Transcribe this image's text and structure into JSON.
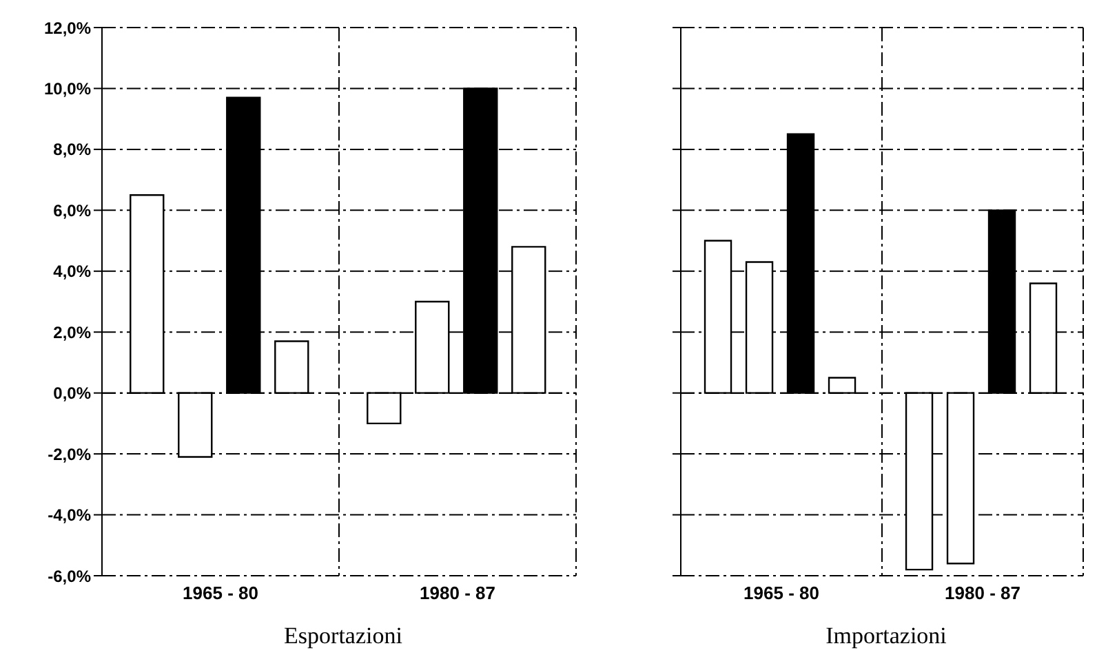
{
  "chart_data": [
    {
      "type": "bar",
      "xlabel": "Esportazioni",
      "categories": [
        "1965 - 80",
        "1980 - 87"
      ],
      "series": [
        {
          "color": "#ffffff",
          "values": [
            6.5,
            -1.0
          ]
        },
        {
          "color": "#ffffff",
          "values": [
            -2.1,
            3.0
          ]
        },
        {
          "color": "#000000",
          "values": [
            9.7,
            10.0
          ]
        },
        {
          "color": "#ffffff",
          "values": [
            1.7,
            4.8
          ]
        }
      ],
      "ylim": [
        -6,
        12
      ],
      "yticks": [
        {
          "value": -6,
          "label": "-6,0%"
        },
        {
          "value": -4,
          "label": "-4,0%"
        },
        {
          "value": -2,
          "label": "-2,0%"
        },
        {
          "value": 0,
          "label": "0,0%"
        },
        {
          "value": 2,
          "label": "2,0%"
        },
        {
          "value": 4,
          "label": "4,0%"
        },
        {
          "value": 6,
          "label": "6,0%"
        },
        {
          "value": 8,
          "label": "8,0%"
        },
        {
          "value": 10,
          "label": "10,0%"
        },
        {
          "value": 12,
          "label": "12,0%"
        }
      ],
      "grid": true,
      "legend": false
    },
    {
      "type": "bar",
      "xlabel": "Importazioni",
      "categories": [
        "1965 - 80",
        "1980 - 87"
      ],
      "series": [
        {
          "color": "#ffffff",
          "values": [
            5.0,
            -5.8
          ]
        },
        {
          "color": "#ffffff",
          "values": [
            4.3,
            -5.6
          ]
        },
        {
          "color": "#000000",
          "values": [
            8.5,
            6.0
          ]
        },
        {
          "color": "#ffffff",
          "values": [
            0.5,
            3.6
          ]
        }
      ],
      "ylim": [
        -6,
        12
      ],
      "yticks": [
        {
          "value": -6,
          "label": null
        },
        {
          "value": -4,
          "label": null
        },
        {
          "value": -2,
          "label": null
        },
        {
          "value": 0,
          "label": null
        },
        {
          "value": 2,
          "label": null
        },
        {
          "value": 4,
          "label": null
        },
        {
          "value": 6,
          "label": null
        },
        {
          "value": 8,
          "label": null
        },
        {
          "value": 10,
          "label": null
        },
        {
          "value": 12,
          "label": null
        }
      ],
      "grid": true,
      "legend": false,
      "tick_labels": "x"
    }
  ]
}
